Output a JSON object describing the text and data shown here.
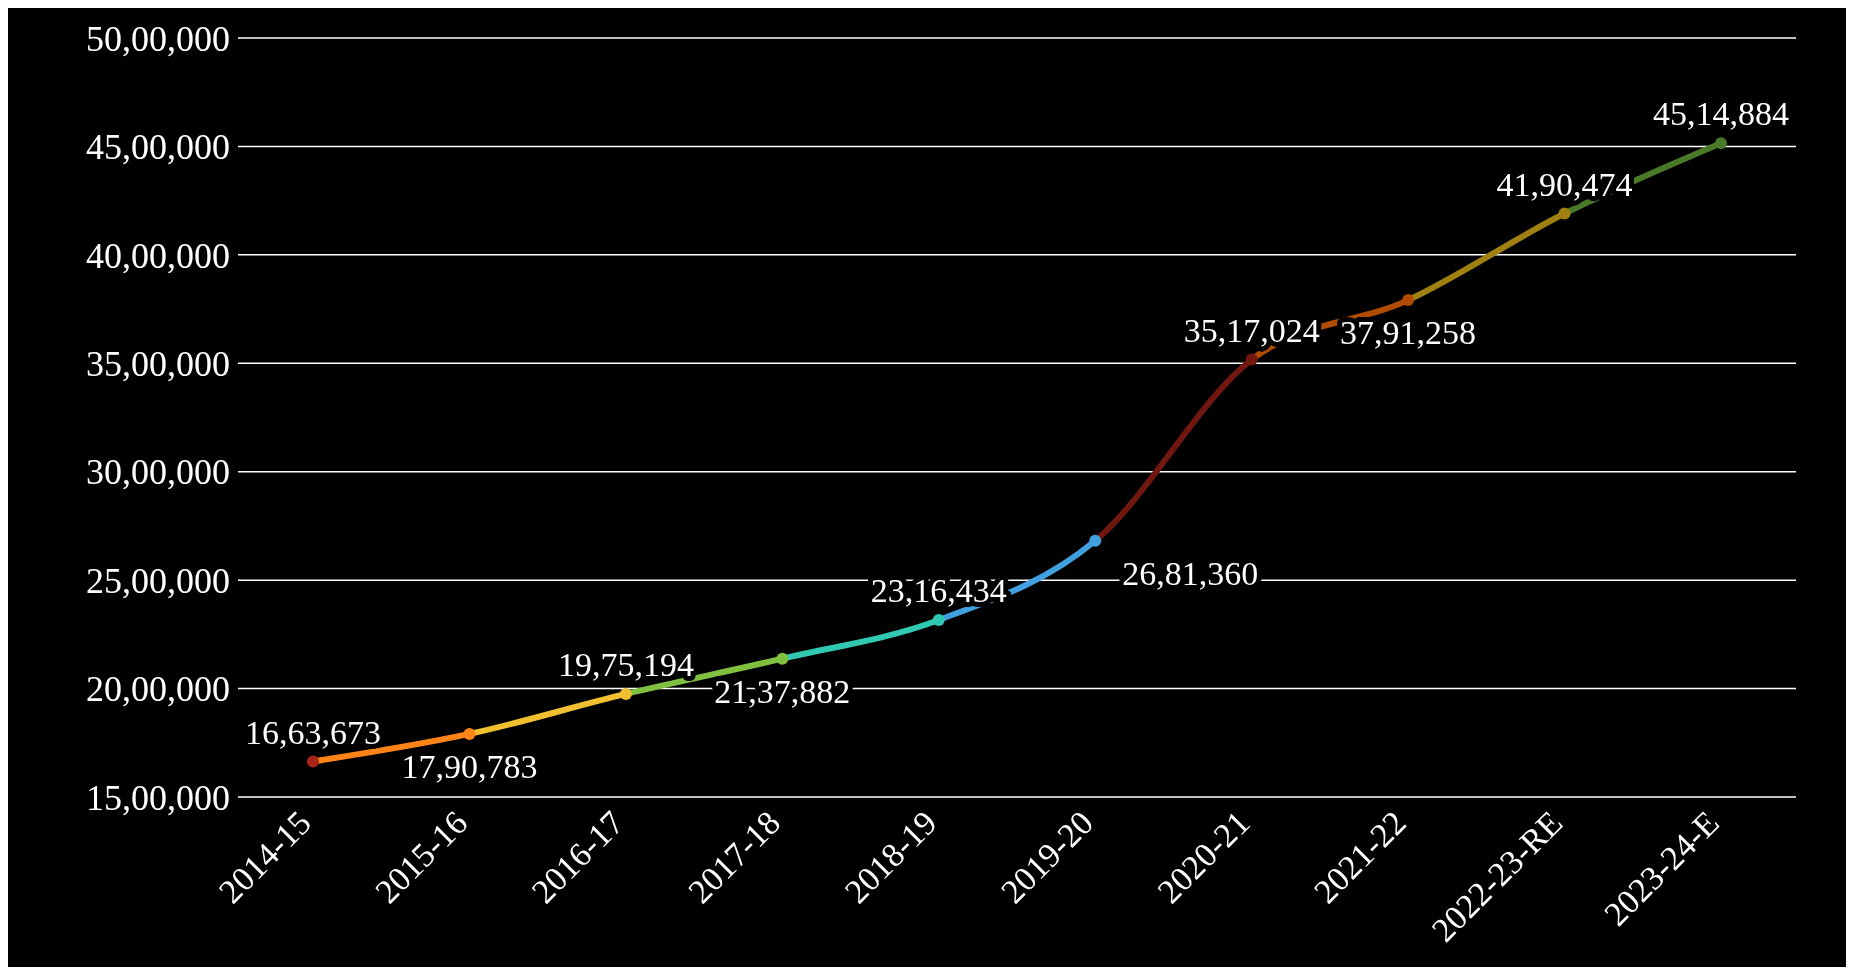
{
  "chart_data": {
    "type": "line",
    "categories": [
      "2014-15",
      "2015-16",
      "2016-17",
      "2017-18",
      "2018-19",
      "2019-20",
      "2020-21",
      "2021-22",
      "2022-23-RE",
      "2023-24-E"
    ],
    "series": [
      {
        "values": [
          1663673,
          1790783,
          1975194,
          2137882,
          2316434,
          2681360,
          3517024,
          3791258,
          4190474,
          4514884
        ],
        "colors": [
          "#a82418",
          "#ff8418",
          "#f0c030",
          "#80c040",
          "#30c8b0",
          "#40a0e0",
          "#701810",
          "#b04c00",
          "#a08010",
          "#4a7a28"
        ],
        "value_labels": [
          "16,63,673",
          "17,90,783",
          "19,75,194",
          "21,37,882",
          "23,16,434",
          "26,81,360",
          "35,17,024",
          "37,91,258",
          "41,90,474",
          "45,14,884"
        ]
      }
    ],
    "ylim": [
      1500000,
      5000000
    ],
    "yticks": [
      {
        "value": 1500000,
        "label": "15,00,000"
      },
      {
        "value": 2000000,
        "label": "20,00,000"
      },
      {
        "value": 2500000,
        "label": "25,00,000"
      },
      {
        "value": 3000000,
        "label": "30,00,000"
      },
      {
        "value": 3500000,
        "label": "35,00,000"
      },
      {
        "value": 4000000,
        "label": "40,00,000"
      },
      {
        "value": 4500000,
        "label": "45,00,000"
      },
      {
        "value": 5000000,
        "label": "50,00,000"
      }
    ],
    "grid": "y",
    "marker": "circle",
    "line_style": "solid"
  }
}
